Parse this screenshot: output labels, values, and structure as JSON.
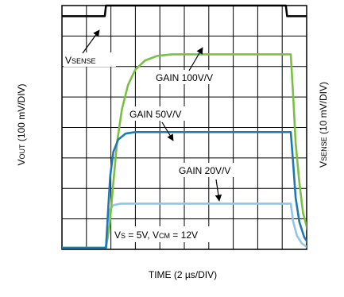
{
  "chart_data": {
    "type": "line",
    "title": "",
    "x_axis": {
      "label": "TIME",
      "scale": "(2 µs/DIV)",
      "divisions": 10
    },
    "y_axis_left": {
      "label_main": "V",
      "label_sub": "OUT",
      "scale": "(100 mV/DIV)",
      "divisions": 8
    },
    "y_axis_right": {
      "label_main": "V",
      "label_sub": "SENSE",
      "scale": "(10 mV/DIV)"
    },
    "grid": true,
    "conditions": {
      "vs_main": "V",
      "vs_sub": "S",
      "vs_value": " = 5V, V",
      "vcm_sub": "CM",
      "vcm_value": " = 12V"
    },
    "series": [
      {
        "name": "V",
        "name_sub": "SENSE",
        "color": "#000000",
        "points": [
          [
            0,
            7.65
          ],
          [
            1.75,
            7.65
          ],
          [
            1.8,
            8.0
          ],
          [
            9.15,
            8.0
          ],
          [
            9.2,
            7.65
          ],
          [
            10,
            7.65
          ]
        ]
      },
      {
        "name": "GAIN 100V/V",
        "color": "#7ac143",
        "points": [
          [
            0,
            0.05
          ],
          [
            1.8,
            0.05
          ],
          [
            1.95,
            0.8
          ],
          [
            2.1,
            2.2
          ],
          [
            2.25,
            3.5
          ],
          [
            2.45,
            4.6
          ],
          [
            2.7,
            5.4
          ],
          [
            3.0,
            5.9
          ],
          [
            3.4,
            6.2
          ],
          [
            3.9,
            6.35
          ],
          [
            4.5,
            6.4
          ],
          [
            9.35,
            6.4
          ],
          [
            9.45,
            5.0
          ],
          [
            9.55,
            3.5
          ],
          [
            9.7,
            2.2
          ],
          [
            9.85,
            1.2
          ],
          [
            10.05,
            0.6
          ],
          [
            10.3,
            0.3
          ],
          [
            10.6,
            0.1
          ],
          [
            10.9,
            0.03
          ],
          [
            11.2,
            0.0
          ]
        ]
      },
      {
        "name": "GAIN 50V/V",
        "color": "#1f78b4",
        "points": [
          [
            0,
            0.05
          ],
          [
            1.8,
            0.05
          ],
          [
            1.88,
            1.2
          ],
          [
            1.97,
            2.4
          ],
          [
            2.1,
            3.2
          ],
          [
            2.3,
            3.6
          ],
          [
            2.6,
            3.8
          ],
          [
            3.0,
            3.85
          ],
          [
            9.35,
            3.85
          ],
          [
            9.45,
            2.8
          ],
          [
            9.55,
            1.7
          ],
          [
            9.7,
            0.9
          ],
          [
            9.9,
            0.4
          ],
          [
            10.1,
            0.15
          ],
          [
            10.4,
            0.05
          ],
          [
            10.8,
            0.0
          ]
        ]
      },
      {
        "name": "GAIN 20V/V",
        "color": "#8ec7e8",
        "points": [
          [
            0,
            0.05
          ],
          [
            1.8,
            0.05
          ],
          [
            1.87,
            0.9
          ],
          [
            1.95,
            1.3
          ],
          [
            2.1,
            1.45
          ],
          [
            2.4,
            1.5
          ],
          [
            9.35,
            1.5
          ],
          [
            9.45,
            0.9
          ],
          [
            9.6,
            0.45
          ],
          [
            9.8,
            0.2
          ],
          [
            10.0,
            0.08
          ],
          [
            10.3,
            0.02
          ],
          [
            10.6,
            0.0
          ]
        ]
      }
    ],
    "annotations": [
      {
        "text": "GAIN 100V/V",
        "series": 1
      },
      {
        "text": "GAIN 50V/V",
        "series": 2
      },
      {
        "text": "GAIN 20V/V",
        "series": 3
      }
    ]
  }
}
